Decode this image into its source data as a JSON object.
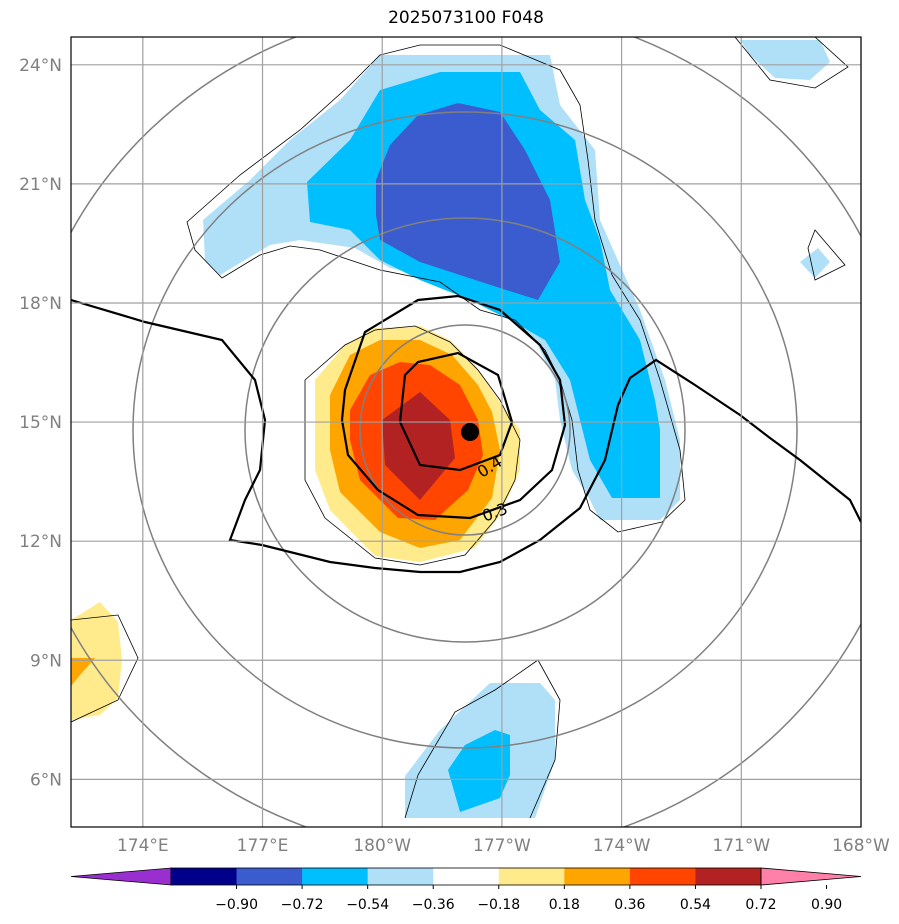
{
  "title": "2025073100 F048",
  "chart_data": {
    "type": "heatmap",
    "title": "2025073100 F048",
    "lat_ticks": [
      "6°N",
      "9°N",
      "12°N",
      "15°N",
      "18°N",
      "21°N",
      "24°N"
    ],
    "lon_ticks": [
      "174°E",
      "177°E",
      "180°W",
      "177°W",
      "174°W",
      "171°W",
      "168°W"
    ],
    "lon_range": [
      172.2,
      192.0
    ],
    "lat_range": [
      4.8,
      24.7
    ],
    "grid": true,
    "colorbar": {
      "levels": [
        "−0.90",
        "−0.72",
        "−0.54",
        "−0.36",
        "−0.18",
        "0.18",
        "0.36",
        "0.54",
        "0.72",
        "0.90"
      ],
      "colors": [
        "#9a2fd0",
        "#00008b",
        "#3a5ccf",
        "#00bfff",
        "#b0e0f8",
        "#ffffff",
        "#ffeb8c",
        "#ffa500",
        "#ff4500",
        "#b22222",
        "#ff80a8"
      ],
      "extend": "both",
      "placement": "bottom"
    },
    "contour_labels": [
      "0.4",
      "0.3"
    ],
    "storm_center": {
      "lon": 182.2,
      "lat": 14.75
    }
  }
}
